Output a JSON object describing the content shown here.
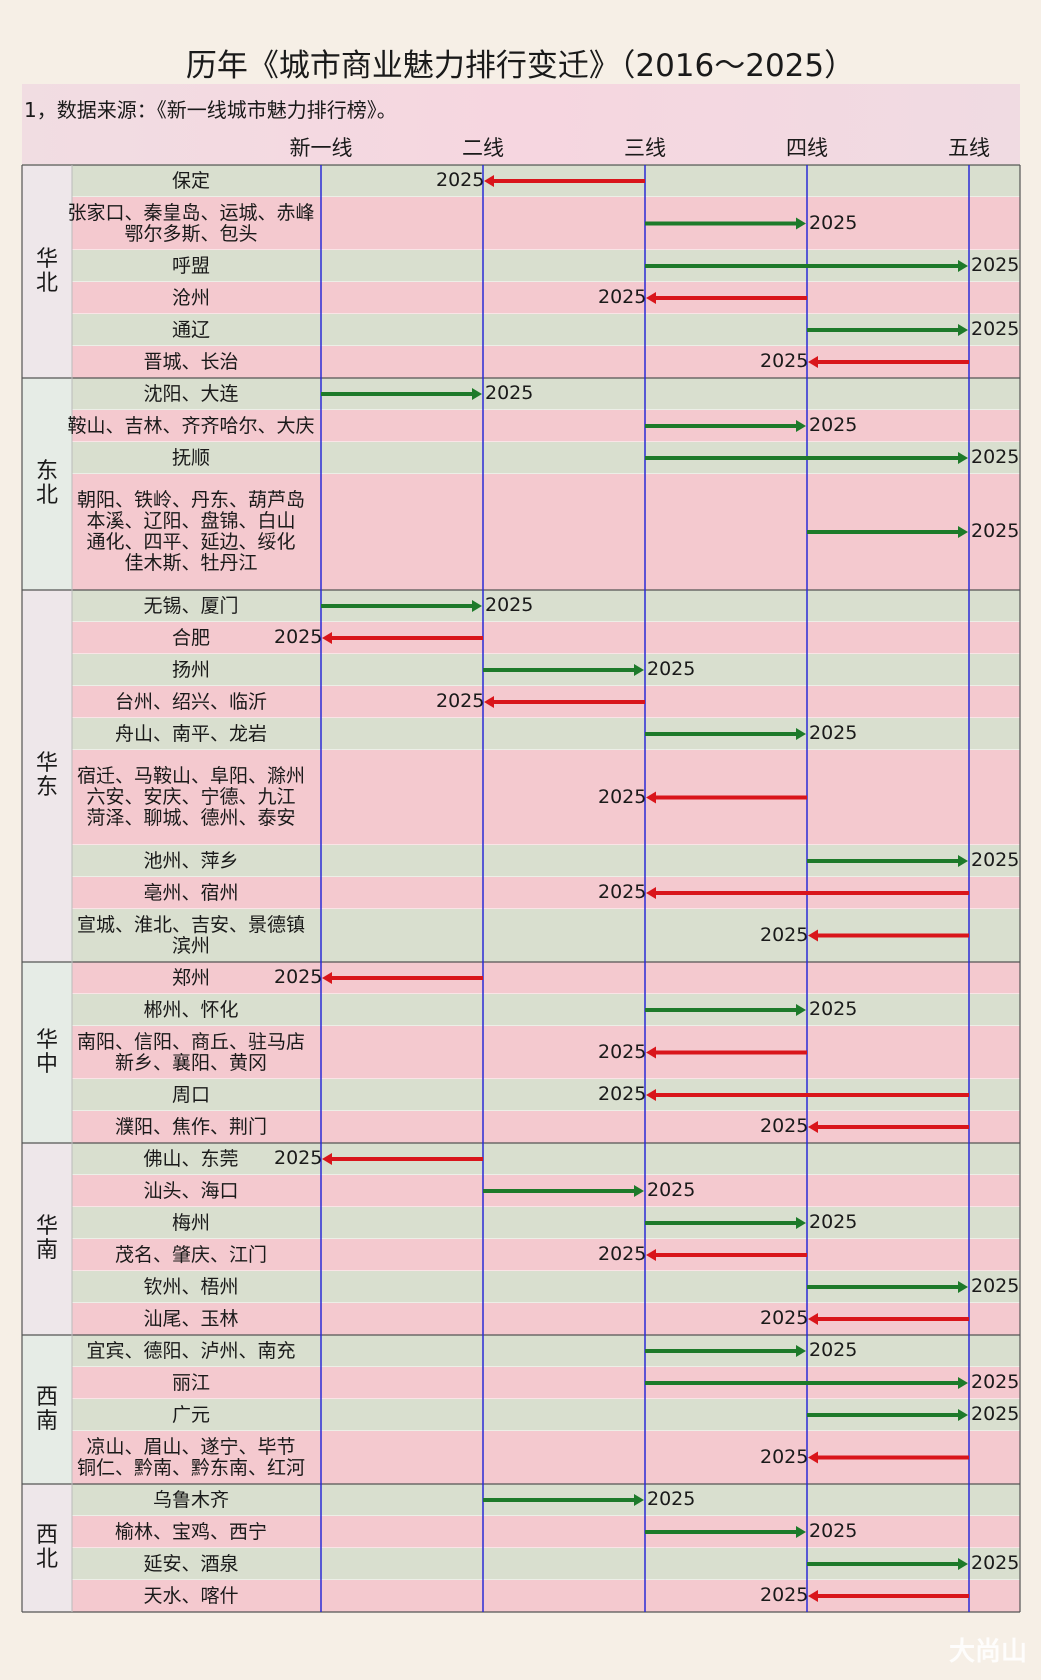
{
  "title": "历年《城市商业魅力排行变迁》（2016～2025）",
  "note": "1，数据来源：《新一线城市魅力排行榜》。",
  "watermark": "大尚山",
  "colors": {
    "up": "#1d7a2a",
    "down": "#d9151b",
    "gridline": "#2b2bd6",
    "shade_pink": "#f4c9cf",
    "shade_green": "#d9dfcf"
  },
  "chart_data": {
    "type": "range-arrow",
    "tiers": [
      "新一线",
      "二线",
      "三线",
      "四线",
      "五线"
    ],
    "end_year_label": "2025",
    "regions": [
      {
        "name": "华北",
        "rows": [
          {
            "cities": [
              "保定"
            ],
            "from": "三线",
            "to": "二线"
          },
          {
            "cities": [
              "张家口、秦皇岛、运城、赤峰",
              "鄂尔多斯、包头"
            ],
            "from": "三线",
            "to": "四线"
          },
          {
            "cities": [
              "呼盟"
            ],
            "from": "三线",
            "to": "五线"
          },
          {
            "cities": [
              "沧州"
            ],
            "from": "四线",
            "to": "三线"
          },
          {
            "cities": [
              "通辽"
            ],
            "from": "四线",
            "to": "五线"
          },
          {
            "cities": [
              "晋城、长治"
            ],
            "from": "五线",
            "to": "四线"
          }
        ]
      },
      {
        "name": "东北",
        "rows": [
          {
            "cities": [
              "沈阳、大连"
            ],
            "from": "新一线",
            "to": "二线"
          },
          {
            "cities": [
              "鞍山、吉林、齐齐哈尔、大庆"
            ],
            "from": "三线",
            "to": "四线"
          },
          {
            "cities": [
              "抚顺"
            ],
            "from": "三线",
            "to": "五线"
          },
          {
            "cities": [
              "朝阳、铁岭、丹东、葫芦岛",
              "本溪、辽阳、盘锦、白山",
              "通化、四平、延边、绥化",
              "佳木斯、牡丹江"
            ],
            "from": "四线",
            "to": "五线"
          }
        ]
      },
      {
        "name": "华东",
        "rows": [
          {
            "cities": [
              "无锡、厦门"
            ],
            "from": "新一线",
            "to": "二线"
          },
          {
            "cities": [
              "合肥"
            ],
            "from": "二线",
            "to": "新一线"
          },
          {
            "cities": [
              "扬州"
            ],
            "from": "二线",
            "to": "三线"
          },
          {
            "cities": [
              "台州、绍兴、临沂"
            ],
            "from": "三线",
            "to": "二线"
          },
          {
            "cities": [
              "舟山、南平、龙岩"
            ],
            "from": "三线",
            "to": "四线"
          },
          {
            "cities": [
              "宿迁、马鞍山、阜阳、滁州",
              "六安、安庆、宁德、九江",
              "菏泽、聊城、德州、泰安"
            ],
            "from": "四线",
            "to": "三线"
          },
          {
            "cities": [
              "池州、萍乡"
            ],
            "from": "四线",
            "to": "五线"
          },
          {
            "cities": [
              "亳州、宿州"
            ],
            "from": "五线",
            "to": "三线"
          },
          {
            "cities": [
              "宣城、淮北、吉安、景德镇",
              "滨州"
            ],
            "from": "五线",
            "to": "四线"
          }
        ]
      },
      {
        "name": "华中",
        "rows": [
          {
            "cities": [
              "郑州"
            ],
            "from": "二线",
            "to": "新一线"
          },
          {
            "cities": [
              "郴州、怀化"
            ],
            "from": "三线",
            "to": "四线"
          },
          {
            "cities": [
              "南阳、信阳、商丘、驻马店",
              "新乡、襄阳、黄冈"
            ],
            "from": "四线",
            "to": "三线"
          },
          {
            "cities": [
              "周口"
            ],
            "from": "五线",
            "to": "三线"
          },
          {
            "cities": [
              "濮阳、焦作、荆门"
            ],
            "from": "五线",
            "to": "四线"
          }
        ]
      },
      {
        "name": "华南",
        "rows": [
          {
            "cities": [
              "佛山、东莞"
            ],
            "from": "二线",
            "to": "新一线"
          },
          {
            "cities": [
              "汕头、海口"
            ],
            "from": "二线",
            "to": "三线"
          },
          {
            "cities": [
              "梅州"
            ],
            "from": "三线",
            "to": "四线"
          },
          {
            "cities": [
              "茂名、肇庆、江门"
            ],
            "from": "四线",
            "to": "三线"
          },
          {
            "cities": [
              "钦州、梧州"
            ],
            "from": "四线",
            "to": "五线"
          },
          {
            "cities": [
              "汕尾、玉林"
            ],
            "from": "五线",
            "to": "四线"
          }
        ]
      },
      {
        "name": "西南",
        "rows": [
          {
            "cities": [
              "宜宾、德阳、泸州、南充"
            ],
            "from": "三线",
            "to": "四线"
          },
          {
            "cities": [
              "丽江"
            ],
            "from": "三线",
            "to": "五线"
          },
          {
            "cities": [
              "广元"
            ],
            "from": "四线",
            "to": "五线"
          },
          {
            "cities": [
              "凉山、眉山、遂宁、毕节",
              "铜仁、黔南、黔东南、红河"
            ],
            "from": "五线",
            "to": "四线"
          }
        ]
      },
      {
        "name": "西北",
        "rows": [
          {
            "cities": [
              "乌鲁木齐"
            ],
            "from": "二线",
            "to": "三线"
          },
          {
            "cities": [
              "榆林、宝鸡、西宁"
            ],
            "from": "三线",
            "to": "四线"
          },
          {
            "cities": [
              "延安、酒泉"
            ],
            "from": "四线",
            "to": "五线"
          },
          {
            "cities": [
              "天水、喀什"
            ],
            "from": "五线",
            "to": "四线"
          }
        ]
      }
    ]
  }
}
